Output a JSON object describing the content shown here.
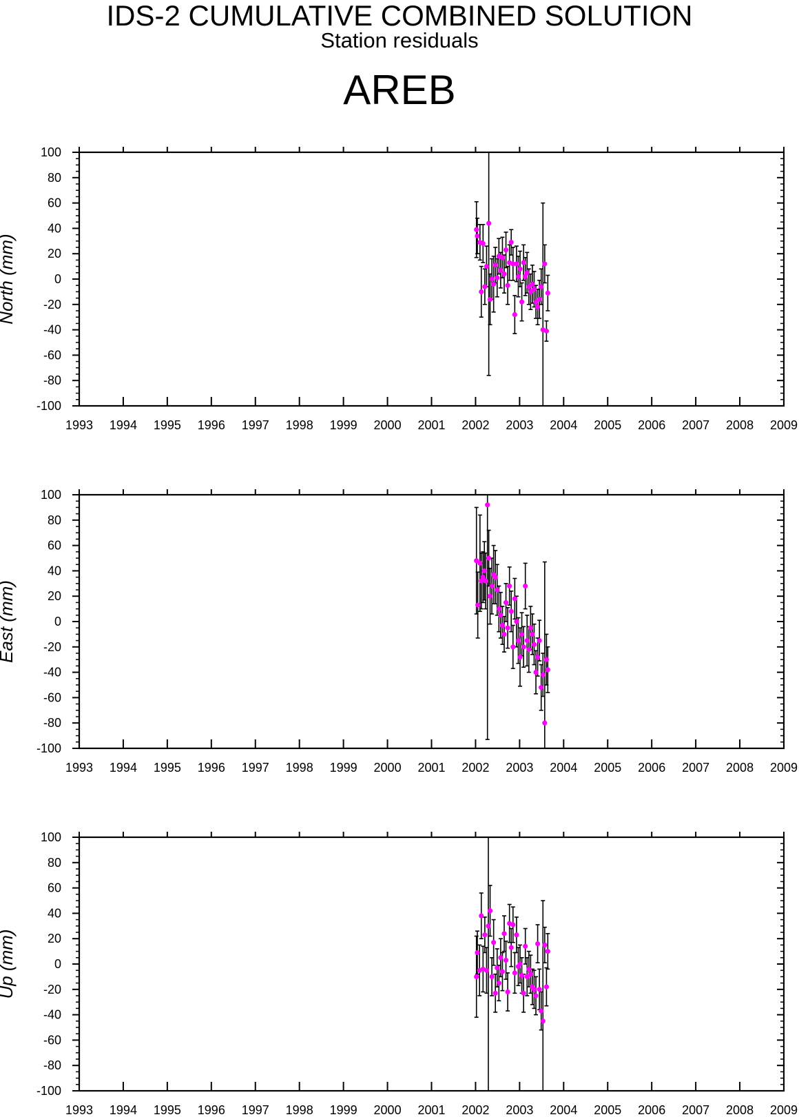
{
  "header": {
    "title": "IDS-2 CUMULATIVE COMBINED SOLUTION",
    "subtitle": "Station residuals",
    "station": "AREB"
  },
  "style": {
    "axis_color": "#000000",
    "marker_color": "#ff00ff",
    "errorbar_color": "#000000"
  },
  "chart_data": [
    {
      "type": "scatter",
      "ylabel": "North (mm)",
      "xlim": [
        1993,
        2009
      ],
      "ylim": [
        -100,
        100
      ],
      "x_ticks": [
        "1993",
        "1994",
        "1995",
        "1996",
        "1997",
        "1998",
        "1999",
        "2000",
        "2001",
        "2002",
        "2003",
        "2004",
        "2005",
        "2006",
        "2007",
        "2008",
        "2009"
      ],
      "y_ticks": [
        "100",
        "80",
        "60",
        "40",
        "20",
        "0",
        "-20",
        "-40",
        "-60",
        "-80",
        "-100"
      ],
      "grid": false,
      "series": [
        {
          "x": [
            2002.02,
            2002.04,
            2002.1,
            2002.13,
            2002.17,
            2002.21,
            2002.25,
            2002.3,
            2002.33,
            2002.37,
            2002.41,
            2002.45,
            2002.49,
            2002.53,
            2002.57,
            2002.61,
            2002.65,
            2002.69,
            2002.73,
            2002.77,
            2002.81,
            2002.85,
            2002.89,
            2002.93,
            2002.97,
            2003.01,
            2003.05,
            2003.09,
            2003.13,
            2003.17,
            2003.21,
            2003.25,
            2003.29,
            2003.33,
            2003.37,
            2003.41,
            2003.45,
            2003.49,
            2003.53,
            2003.57,
            2003.61,
            2003.64
          ],
          "y": [
            39,
            34,
            29,
            -10,
            28,
            -6,
            10,
            44,
            -16,
            0,
            -4,
            11,
            1,
            18,
            7,
            17,
            4,
            23,
            -5,
            13,
            29,
            12,
            -28,
            12,
            2,
            8,
            -18,
            13,
            2,
            5,
            -6,
            -10,
            -4,
            -8,
            -18,
            -22,
            -16,
            -6,
            -40,
            12,
            -41,
            -11
          ],
          "err": [
            22,
            14,
            14,
            20,
            15,
            14,
            16,
            120,
            20,
            16,
            22,
            14,
            15,
            14,
            14,
            16,
            15,
            14,
            15,
            14,
            10,
            13,
            15,
            14,
            16,
            14,
            15,
            14,
            15,
            16,
            14,
            14,
            15,
            14,
            13,
            14,
            15,
            14,
            100,
            15,
            8,
            14
          ]
        }
      ]
    },
    {
      "type": "scatter",
      "ylabel": "East (mm)",
      "xlim": [
        1993,
        2009
      ],
      "ylim": [
        -100,
        100
      ],
      "x_ticks": [
        "1993",
        "1994",
        "1995",
        "1996",
        "1997",
        "1998",
        "1999",
        "2000",
        "2001",
        "2002",
        "2003",
        "2004",
        "2005",
        "2006",
        "2007",
        "2008",
        "2009"
      ],
      "y_ticks": [
        "100",
        "80",
        "60",
        "40",
        "20",
        "0",
        "-20",
        "-40",
        "-60",
        "-80",
        "-100"
      ],
      "grid": false,
      "series": [
        {
          "x": [
            2002.02,
            2002.05,
            2002.1,
            2002.13,
            2002.17,
            2002.2,
            2002.23,
            2002.27,
            2002.3,
            2002.33,
            2002.37,
            2002.41,
            2002.45,
            2002.49,
            2002.53,
            2002.57,
            2002.61,
            2002.65,
            2002.69,
            2002.73,
            2002.77,
            2002.81,
            2002.85,
            2002.89,
            2002.93,
            2002.97,
            2003.01,
            2003.05,
            2003.09,
            2003.13,
            2003.17,
            2003.21,
            2003.25,
            2003.29,
            2003.33,
            2003.37,
            2003.41,
            2003.45,
            2003.49,
            2003.53,
            2003.57,
            2003.61,
            2003.64
          ],
          "y": [
            48,
            13,
            46,
            32,
            35,
            40,
            32,
            92,
            50,
            20,
            28,
            37,
            35,
            25,
            10,
            5,
            -3,
            -10,
            15,
            -5,
            28,
            8,
            -20,
            18,
            0,
            -15,
            -28,
            -10,
            -20,
            28,
            -15,
            -22,
            -5,
            -10,
            -18,
            -40,
            -28,
            -15,
            -52,
            -42,
            -80,
            -30,
            -38
          ],
          "err": [
            42,
            26,
            38,
            22,
            20,
            23,
            22,
            185,
            22,
            22,
            22,
            23,
            21,
            20,
            18,
            18,
            15,
            14,
            15,
            16,
            15,
            16,
            17,
            16,
            20,
            18,
            23,
            17,
            16,
            18,
            20,
            18,
            17,
            16,
            16,
            17,
            15,
            16,
            18,
            17,
            127,
            20,
            18
          ]
        }
      ]
    },
    {
      "type": "scatter",
      "ylabel": "Up (mm)",
      "xlim": [
        1993,
        2009
      ],
      "ylim": [
        -100,
        100
      ],
      "x_ticks": [
        "1993",
        "1994",
        "1995",
        "1996",
        "1997",
        "1998",
        "1999",
        "2000",
        "2001",
        "2002",
        "2003",
        "2004",
        "2005",
        "2006",
        "2007",
        "2008",
        "2009"
      ],
      "y_ticks": [
        "100",
        "80",
        "60",
        "40",
        "20",
        "0",
        "-20",
        "-40",
        "-60",
        "-80",
        "-100"
      ],
      "grid": false,
      "series": [
        {
          "x": [
            2002.02,
            2002.04,
            2002.09,
            2002.13,
            2002.17,
            2002.21,
            2002.25,
            2002.29,
            2002.33,
            2002.37,
            2002.41,
            2002.45,
            2002.49,
            2002.53,
            2002.57,
            2002.61,
            2002.65,
            2002.69,
            2002.73,
            2002.77,
            2002.81,
            2002.85,
            2002.89,
            2002.93,
            2002.97,
            2003.01,
            2003.05,
            2003.09,
            2003.13,
            2003.17,
            2003.21,
            2003.25,
            2003.29,
            2003.33,
            2003.37,
            2003.41,
            2003.45,
            2003.49,
            2003.53,
            2003.57,
            2003.61,
            2003.64
          ],
          "y": [
            -10,
            9,
            -5,
            38,
            -4,
            23,
            -5,
            30,
            42,
            -10,
            17,
            -23,
            -3,
            -15,
            5,
            -6,
            24,
            3,
            -22,
            32,
            13,
            31,
            -7,
            23,
            -2,
            0,
            -9,
            -23,
            14,
            -10,
            -4,
            -8,
            -18,
            -20,
            -25,
            16,
            -20,
            -37,
            -45,
            15,
            -18,
            10
          ],
          "err": [
            32,
            17,
            20,
            18,
            18,
            14,
            18,
            130,
            20,
            15,
            18,
            15,
            15,
            14,
            15,
            15,
            14,
            15,
            15,
            15,
            15,
            14,
            16,
            14,
            15,
            15,
            14,
            15,
            14,
            15,
            14,
            15,
            14,
            15,
            15,
            15,
            16,
            15,
            95,
            14,
            15,
            14
          ]
        }
      ]
    }
  ]
}
